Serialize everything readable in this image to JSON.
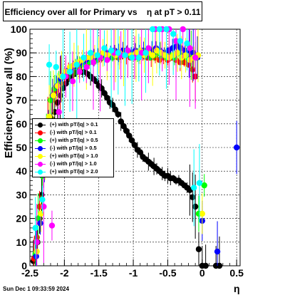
{
  "title": "Efficiency over all for Primary vs    η at pT > 0.11",
  "footer": "Sun Dec  1 09:33:59 2024",
  "chart_data": {
    "type": "scatter",
    "xlabel": "η",
    "ylabel": "Efficiency over all (%)",
    "xlim": [
      -2.5,
      0.55
    ],
    "ylim": [
      0,
      100
    ],
    "xticks": [
      "-2.5",
      "-2",
      "-1.5",
      "-1",
      "-0.5",
      "0",
      "0.5"
    ],
    "xtick_values": [
      -2.5,
      -2,
      -1.5,
      -1,
      -0.5,
      0,
      0.5
    ],
    "yticks": [
      "0",
      "10",
      "20",
      "30",
      "40",
      "50",
      "60",
      "70",
      "80",
      "90",
      "100"
    ],
    "ytick_values": [
      0,
      10,
      20,
      30,
      40,
      50,
      60,
      70,
      80,
      90,
      100
    ],
    "grid": true,
    "legend_position": "left-middle",
    "series": [
      {
        "name": "(+) with pT/|q| > 0.1",
        "color": "#000000",
        "x": [
          -2.45,
          -2.42,
          -2.39,
          -2.36,
          -2.33,
          -2.3,
          -2.26,
          -2.22,
          -2.18,
          -2.14,
          -2.1,
          -2.06,
          -2.02,
          -1.98,
          -1.94,
          -1.9,
          -1.86,
          -1.82,
          -1.78,
          -1.74,
          -1.7,
          -1.66,
          -1.62,
          -1.58,
          -1.54,
          -1.5,
          -1.46,
          -1.42,
          -1.38,
          -1.34,
          -1.3,
          -1.26,
          -1.22,
          -1.18,
          -1.14,
          -1.1,
          -1.06,
          -1.02,
          -0.98,
          -0.94,
          -0.9,
          -0.86,
          -0.82,
          -0.78,
          -0.74,
          -0.7,
          -0.66,
          -0.62,
          -0.58,
          -0.54,
          -0.5,
          -0.46,
          -0.42,
          -0.38,
          -0.34,
          -0.3,
          -0.26,
          -0.22,
          -0.18,
          -0.14,
          -0.1,
          -0.05,
          0.0,
          0.05,
          0.2,
          0.25
        ],
        "y": [
          2,
          4,
          10,
          20,
          30,
          42,
          50,
          58,
          62,
          65,
          69,
          72,
          75,
          77,
          79,
          80,
          81,
          82,
          82,
          82,
          82,
          81,
          80,
          79,
          78,
          76,
          75,
          73,
          71,
          69,
          68,
          66,
          64,
          61,
          59,
          57,
          55,
          53,
          51,
          49,
          48,
          46,
          45,
          44,
          43,
          42,
          41,
          40,
          39,
          38,
          38,
          37,
          37,
          36,
          36,
          35,
          34,
          33,
          32,
          29,
          25,
          7,
          0,
          0,
          0,
          0
        ]
      },
      {
        "name": "(-) with pT/|q| > 0.1",
        "color": "#ff0000",
        "x": [
          -2.44,
          -2.4,
          -2.36,
          -2.3,
          -2.24,
          -2.18,
          -2.12,
          -2.06,
          -2.0,
          -1.94,
          -1.88,
          -1.82,
          -1.76,
          -1.7,
          -1.64,
          -1.58,
          -1.52,
          -1.46,
          -1.4,
          -1.34,
          -1.28,
          -1.22,
          -1.16,
          -1.1,
          -1.04,
          -0.98,
          -0.92,
          -0.86,
          -0.8,
          -0.74,
          -0.68,
          -0.62,
          -0.56,
          -0.5,
          -0.44,
          -0.38,
          -0.32,
          -0.26,
          -0.2,
          -0.14,
          -0.1
        ],
        "y": [
          3,
          12,
          25,
          45,
          60,
          70,
          74,
          77,
          80,
          82,
          84,
          84,
          85,
          86,
          86,
          87,
          87,
          88,
          88,
          89,
          89,
          88,
          89,
          89,
          88,
          89,
          88,
          89,
          88,
          88,
          88,
          87,
          88,
          87,
          88,
          87,
          86,
          86,
          85,
          83,
          80
        ]
      },
      {
        "name": "(+) with pT/|q| > 0.5",
        "color": "#00ff00",
        "x": [
          -2.42,
          -2.38,
          -2.32,
          -2.26,
          -2.2,
          -2.14,
          -2.08,
          -2.02,
          -1.96,
          -1.9,
          -1.84,
          -1.78,
          -1.72,
          -1.66,
          -1.6,
          -1.54,
          -1.48,
          -1.42,
          -1.36,
          -1.3,
          -1.24,
          -1.18,
          -1.12,
          -1.06,
          -1.0,
          -0.94,
          -0.88,
          -0.82,
          -0.76,
          -0.7,
          -0.64,
          -0.58,
          -0.52,
          -0.46,
          -0.4,
          -0.34,
          -0.28,
          -0.22,
          -0.16,
          -0.1,
          -0.05,
          0.03
        ],
        "y": [
          5,
          20,
          38,
          58,
          70,
          75,
          78,
          80,
          82,
          83,
          84,
          85,
          85,
          86,
          87,
          87,
          88,
          88,
          89,
          88,
          89,
          89,
          90,
          89,
          90,
          89,
          90,
          89,
          88,
          89,
          90,
          89,
          88,
          89,
          88,
          90,
          89,
          88,
          89,
          88,
          22,
          34
        ]
      },
      {
        "name": "(-) with pT/|q| > 0.5",
        "color": "#0000ff",
        "x": [
          -2.41,
          -2.35,
          -2.29,
          -2.23,
          -2.17,
          -2.11,
          -2.05,
          -1.99,
          -1.93,
          -1.87,
          -1.81,
          -1.75,
          -1.69,
          -1.63,
          -1.57,
          -1.51,
          -1.45,
          -1.39,
          -1.33,
          -1.27,
          -1.21,
          -1.15,
          -1.09,
          -1.03,
          -0.97,
          -0.91,
          -0.85,
          -0.79,
          -0.73,
          -0.67,
          -0.61,
          -0.55,
          -0.49,
          -0.43,
          -0.37,
          -0.31,
          -0.25,
          -0.19,
          -0.13,
          -0.07,
          0.0,
          0.22,
          0.5
        ],
        "y": [
          4,
          18,
          40,
          60,
          72,
          76,
          79,
          81,
          83,
          84,
          85,
          86,
          87,
          88,
          88,
          89,
          89,
          90,
          90,
          91,
          90,
          91,
          91,
          90,
          91,
          90,
          91,
          90,
          91,
          92,
          91,
          90,
          91,
          92,
          93,
          92,
          91,
          91,
          90,
          88,
          19,
          6,
          50
        ]
      },
      {
        "name": "(+) with pT/|q| > 1.0",
        "color": "#ffff00",
        "x": [
          -2.4,
          -2.34,
          -2.28,
          -2.22,
          -2.16,
          -2.1,
          -2.04,
          -1.98,
          -1.92,
          -1.86,
          -1.8,
          -1.74,
          -1.68,
          -1.62,
          -1.56,
          -1.5,
          -1.44,
          -1.38,
          -1.32,
          -1.26,
          -1.2,
          -1.14,
          -1.08,
          -1.02,
          -0.96,
          -0.9,
          -0.84,
          -0.78,
          -0.72,
          -0.66,
          -0.6,
          -0.54,
          -0.48,
          -0.42,
          -0.36,
          -0.3,
          -0.24,
          -0.18,
          -0.12,
          -0.06,
          0.0
        ],
        "y": [
          6,
          22,
          45,
          63,
          72,
          76,
          80,
          82,
          84,
          85,
          86,
          87,
          88,
          88,
          89,
          89,
          90,
          89,
          90,
          89,
          90,
          89,
          90,
          89,
          90,
          91,
          89,
          90,
          89,
          91,
          90,
          89,
          88,
          89,
          90,
          88,
          89,
          87,
          88,
          89,
          22
        ]
      },
      {
        "name": "(-) with pT/|q| > 1.0",
        "color": "#ff00ff",
        "x": [
          -2.4,
          -2.3,
          -2.18,
          -2.08,
          -1.98,
          -1.88,
          -1.78,
          -1.68,
          -1.58,
          -1.48,
          -1.38,
          -1.28,
          -1.18,
          -1.08,
          -0.98,
          -0.88,
          -0.78,
          -0.68,
          -0.58,
          -0.48,
          -0.38,
          -0.28,
          -0.18,
          -0.1
        ],
        "y": [
          10,
          25,
          17,
          65,
          80,
          78,
          82,
          84,
          86,
          88,
          87,
          90,
          89,
          91,
          88,
          90,
          92,
          100,
          100,
          100,
          95,
          100,
          92,
          88
        ]
      },
      {
        "name": "(+) with pT/|q| > 2.0",
        "color": "#00ffff",
        "x": [
          -2.42,
          -2.32,
          -2.22,
          -2.12,
          -2.02,
          -1.92,
          -1.82,
          -1.72,
          -1.62,
          -1.52,
          -1.42,
          -1.32,
          -1.22,
          -1.12,
          -1.02,
          -0.92,
          -0.82,
          -0.72,
          -0.62,
          -0.52,
          -0.42,
          -0.32,
          -0.22,
          -0.12,
          -0.04
        ],
        "y": [
          16,
          28,
          85,
          84,
          80,
          82,
          85,
          88,
          90,
          89,
          92,
          91,
          90,
          89,
          88,
          88,
          90,
          100,
          100,
          100,
          98,
          95,
          94,
          33,
          35
        ]
      }
    ]
  }
}
